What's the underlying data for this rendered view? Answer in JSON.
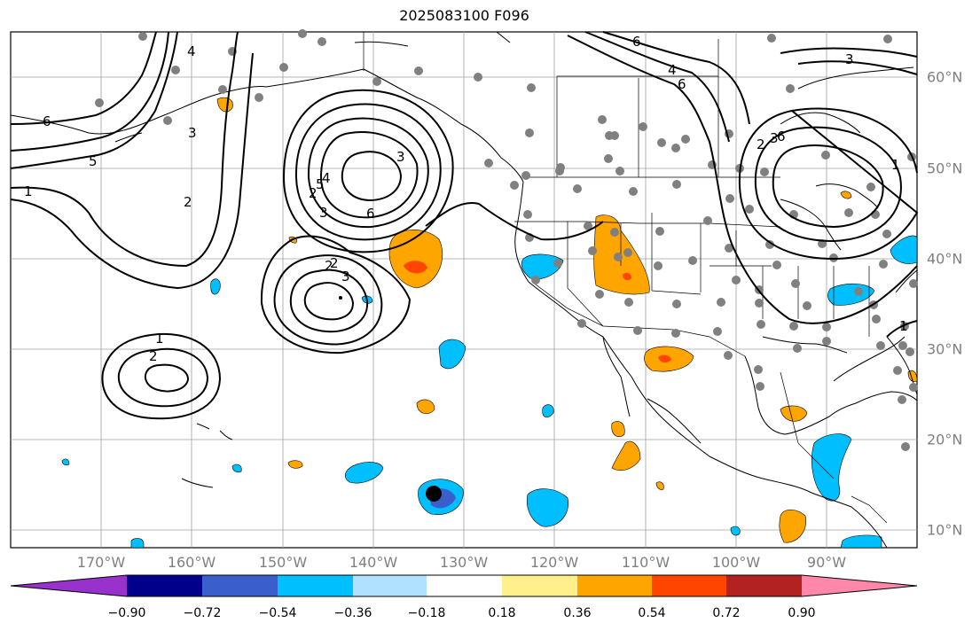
{
  "title": "2025083100 F096",
  "lon_labels": [
    "170°W",
    "160°W",
    "150°W",
    "140°W",
    "130°W",
    "120°W",
    "110°W",
    "100°W",
    "90°W"
  ],
  "lat_labels": [
    "60°N",
    "50°N",
    "40°N",
    "30°N",
    "20°N",
    "10°N"
  ],
  "contour_labels": [
    "4",
    "3",
    "2",
    "6",
    "5",
    "1",
    "3",
    "6",
    "2",
    "5",
    "4",
    "3",
    "2",
    "6",
    "4",
    "6",
    "3",
    "2",
    "3",
    "6",
    "1",
    "1",
    "2",
    "1",
    "2",
    "3"
  ],
  "colorbar": {
    "ticks": [
      "−0.90",
      "−0.72",
      "−0.54",
      "−0.36",
      "−0.18",
      "0.18",
      "0.36",
      "0.54",
      "0.72",
      "0.90"
    ],
    "colors": [
      "#9932cc",
      "#00008b",
      "#3a5fcd",
      "#00bfff",
      "#b0e2ff",
      "#ffffff",
      "#fff08c",
      "#ffa500",
      "#ff4500",
      "#b22222",
      "#ff88aa"
    ]
  },
  "colors": {
    "neg_strong": "#3a5fcd",
    "neg_mid": "#00bfff",
    "pos_mid": "#ffa500",
    "pos_strong": "#ff4500",
    "station": "#808080",
    "grid": "#a0a0a0"
  }
}
